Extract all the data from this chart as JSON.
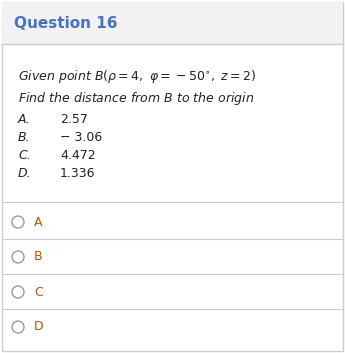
{
  "title": "Question 16",
  "title_color": "#4472C4",
  "header_bg": "#F2F2F2",
  "body_bg": "#FFFFFF",
  "border_color": "#CCCCCC",
  "divider_color": "#CCCCCC",
  "text_color": "#222222",
  "choice_label_color": "#C05000",
  "circle_color": "#999999",
  "options": [
    {
      "label": "A.",
      "value": "2.57"
    },
    {
      "label": "B.",
      "value": "− 3.06"
    },
    {
      "label": "C.",
      "value": "4.472"
    },
    {
      "label": "D.",
      "value": "1.336"
    }
  ],
  "choices": [
    "A",
    "B",
    "C",
    "D"
  ],
  "figsize": [
    3.45,
    3.53
  ],
  "dpi": 100
}
